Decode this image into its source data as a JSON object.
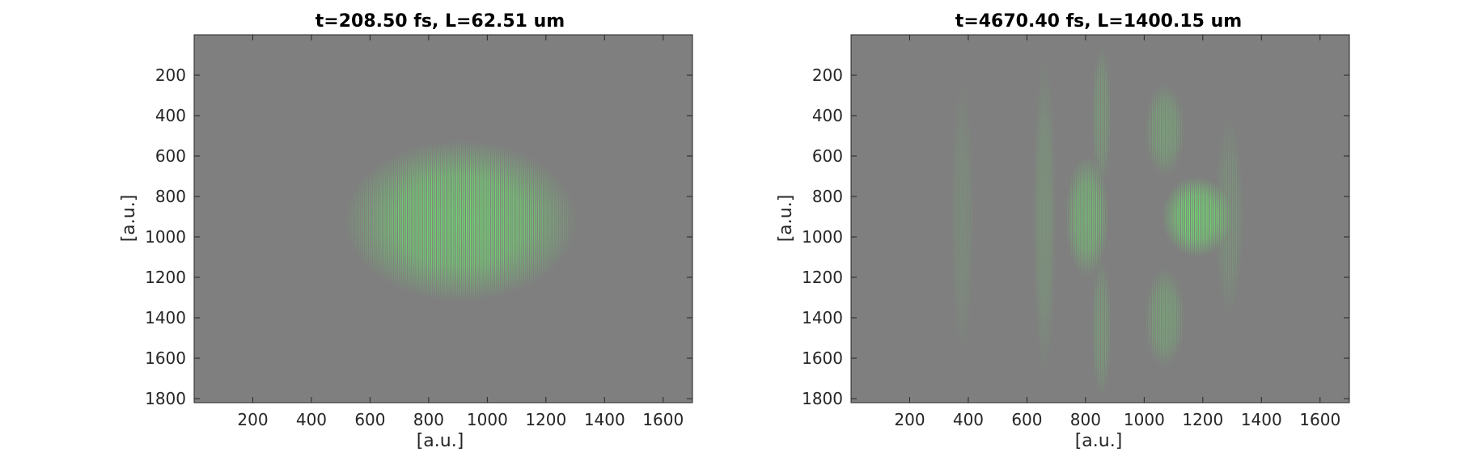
{
  "chart_data": [
    {
      "type": "heatmap",
      "title": "t=208.50 fs, L=62.51 um",
      "xlabel": "[a.u.]",
      "ylabel": "[a.u.]",
      "xlim": [
        0,
        1700
      ],
      "ylim": [
        0,
        1820
      ],
      "y_reversed": true,
      "x_ticks": [
        200,
        400,
        600,
        800,
        1000,
        1200,
        1400,
        1600
      ],
      "y_ticks": [
        200,
        400,
        600,
        800,
        1000,
        1200,
        1400,
        1600,
        1800
      ],
      "background_color": "#7f7f7f",
      "signal_color": "#6ee36e",
      "pulses": [
        {
          "x_start": 510,
          "x_end": 1310,
          "y_center": 920,
          "y_half_width": 400,
          "peak_x": 950,
          "intensity": 0.95
        }
      ]
    },
    {
      "type": "heatmap",
      "title": "t=4670.40 fs, L=1400.15 um",
      "xlabel": "[a.u.]",
      "ylabel": "[a.u.]",
      "xlim": [
        0,
        1700
      ],
      "ylim": [
        0,
        1820
      ],
      "y_reversed": true,
      "x_ticks": [
        200,
        400,
        600,
        800,
        1000,
        1200,
        1400,
        1600
      ],
      "y_ticks": [
        200,
        400,
        600,
        800,
        1000,
        1200,
        1400,
        1600,
        1800
      ],
      "background_color": "#7f7f7f",
      "signal_color": "#6ee36e",
      "pulses": [
        {
          "x_start": 1060,
          "x_end": 1300,
          "y_center": 900,
          "y_half_width": 200,
          "peak_x": 1180,
          "intensity": 1.0
        },
        {
          "x_start": 730,
          "x_end": 880,
          "y_center": 900,
          "y_half_width": 300,
          "peak_x": 810,
          "intensity": 0.7
        },
        {
          "x_start": 1000,
          "x_end": 1140,
          "y_center": 470,
          "y_half_width": 230,
          "peak_x": 1080,
          "intensity": 0.45
        },
        {
          "x_start": 1000,
          "x_end": 1140,
          "y_center": 1400,
          "y_half_width": 250,
          "peak_x": 1080,
          "intensity": 0.45
        },
        {
          "x_start": 820,
          "x_end": 890,
          "y_center": 400,
          "y_half_width": 350,
          "peak_x": 855,
          "intensity": 0.35
        },
        {
          "x_start": 820,
          "x_end": 890,
          "y_center": 1450,
          "y_half_width": 350,
          "peak_x": 855,
          "intensity": 0.35
        },
        {
          "x_start": 620,
          "x_end": 700,
          "y_center": 900,
          "y_half_width": 800,
          "peak_x": 665,
          "intensity": 0.3
        },
        {
          "x_start": 340,
          "x_end": 420,
          "y_center": 900,
          "y_half_width": 700,
          "peak_x": 380,
          "intensity": 0.2
        },
        {
          "x_start": 1240,
          "x_end": 1340,
          "y_center": 900,
          "y_half_width": 500,
          "peak_x": 1290,
          "intensity": 0.25
        }
      ]
    }
  ]
}
